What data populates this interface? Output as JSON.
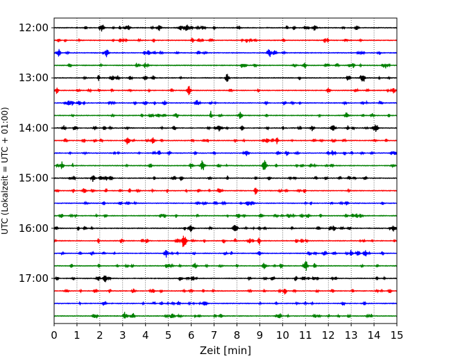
{
  "chart_data": {
    "type": "line",
    "subtype": "seismogram-helicorder",
    "xlabel": "Zeit  [min]",
    "ylabel": "UTC (Lokalzeit = UTC + 01:00)",
    "xlim": [
      0,
      15
    ],
    "x_ticks": [
      "0",
      "1",
      "2",
      "3",
      "4",
      "5",
      "6",
      "7",
      "8",
      "9",
      "10",
      "11",
      "12",
      "13",
      "14",
      "15"
    ],
    "y_ticks": [
      "12:00",
      "13:00",
      "14:00",
      "15:00",
      "16:00",
      "17:00"
    ],
    "grid": "vertical dotted every minute",
    "trace_colors": [
      "#000000",
      "#ff0000",
      "#0000ff",
      "#008000"
    ],
    "trace_start_times": [
      "12:00",
      "12:15",
      "12:30",
      "12:45",
      "13:00",
      "13:15",
      "13:30",
      "13:45",
      "14:00",
      "14:15",
      "14:30",
      "14:45",
      "15:00",
      "15:15",
      "15:30",
      "15:45",
      "16:00",
      "16:15",
      "16:30",
      "16:45",
      "17:00",
      "17:15",
      "17:30",
      "17:45"
    ],
    "minutes_per_trace": 15,
    "events": [
      {
        "trace": 0,
        "minute": 2.1,
        "amplitude": 0.55
      },
      {
        "trace": 0,
        "minute": 5.8,
        "amplitude": 0.45
      },
      {
        "trace": 0,
        "minute": 11.4,
        "amplitude": 0.4
      },
      {
        "trace": 2,
        "minute": 2.3,
        "amplitude": 0.6
      },
      {
        "trace": 2,
        "minute": 9.4,
        "amplitude": 0.5
      },
      {
        "trace": 4,
        "minute": 13.5,
        "amplitude": 0.4
      },
      {
        "trace": 5,
        "minute": 5.9,
        "amplitude": 0.65
      },
      {
        "trace": 7,
        "minute": 12.8,
        "amplitude": 0.5
      },
      {
        "trace": 8,
        "minute": 11.3,
        "amplitude": 0.45
      },
      {
        "trace": 8,
        "minute": 14.1,
        "amplitude": 0.55
      },
      {
        "trace": 9,
        "minute": 4.3,
        "amplitude": 0.5
      },
      {
        "trace": 11,
        "minute": 6.5,
        "amplitude": 0.8
      },
      {
        "trace": 11,
        "minute": 9.2,
        "amplitude": 0.85
      },
      {
        "trace": 12,
        "minute": 1.7,
        "amplitude": 0.5
      },
      {
        "trace": 16,
        "minute": 6.0,
        "amplitude": 0.5
      },
      {
        "trace": 16,
        "minute": 7.9,
        "amplitude": 0.5
      },
      {
        "trace": 17,
        "minute": 5.7,
        "amplitude": 1.0
      },
      {
        "trace": 18,
        "minute": 4.9,
        "amplitude": 0.6
      },
      {
        "trace": 19,
        "minute": 9.2,
        "amplitude": 0.45
      },
      {
        "trace": 22,
        "minute": 6.6,
        "amplitude": 0.45
      }
    ]
  }
}
